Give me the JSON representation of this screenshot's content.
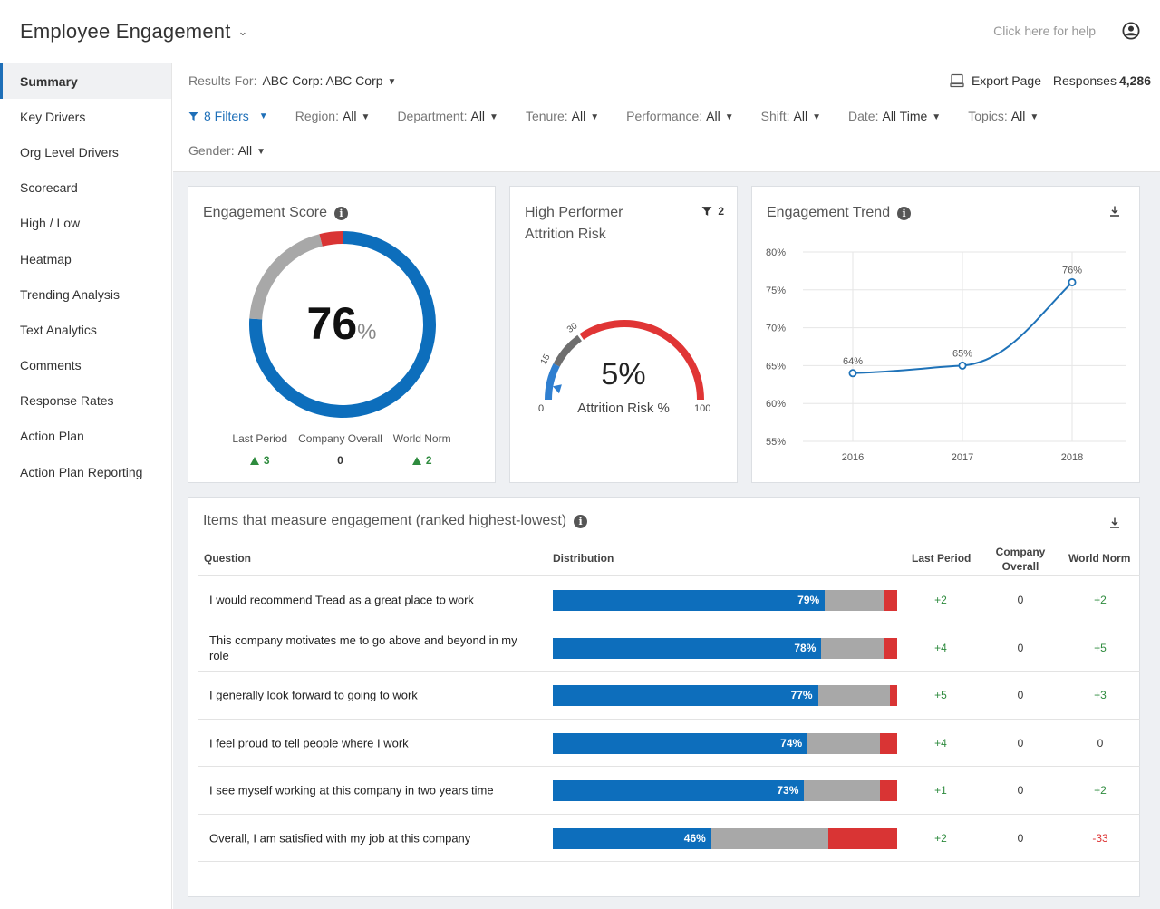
{
  "header": {
    "title": "Employee Engagement",
    "help": "Click here for help"
  },
  "sidebar": {
    "items": [
      {
        "label": "Summary",
        "active": true
      },
      {
        "label": "Key Drivers"
      },
      {
        "label": "Org Level Drivers"
      },
      {
        "label": "Scorecard"
      },
      {
        "label": "High / Low"
      },
      {
        "label": "Heatmap"
      },
      {
        "label": "Trending Analysis"
      },
      {
        "label": "Text Analytics"
      },
      {
        "label": "Comments"
      },
      {
        "label": "Response Rates"
      },
      {
        "label": "Action Plan"
      },
      {
        "label": "Action Plan Reporting"
      }
    ]
  },
  "filters": {
    "results_label": "Results For:",
    "results_value": "ABC Corp: ABC Corp",
    "export_label": "Export Page",
    "responses_label": "Responses",
    "responses_count": "4,286",
    "filter_count": "8 Filters",
    "items": [
      {
        "label": "Region:",
        "value": "All"
      },
      {
        "label": "Department:",
        "value": "All"
      },
      {
        "label": "Tenure:",
        "value": "All"
      },
      {
        "label": "Performance:",
        "value": "All"
      },
      {
        "label": "Shift:",
        "value": "All"
      },
      {
        "label": "Date:",
        "value": "All Time"
      },
      {
        "label": "Topics:",
        "value": "All"
      },
      {
        "label": "Gender:",
        "value": "All"
      }
    ]
  },
  "engagement_score": {
    "title": "Engagement Score",
    "value": "76",
    "unit": "%",
    "ring": {
      "positive": 76,
      "neutral": 20,
      "negative": 4
    },
    "stats": [
      {
        "label": "Last Period",
        "value": "3",
        "trend": "up"
      },
      {
        "label": "Company Overall",
        "value": "0",
        "trend": "none"
      },
      {
        "label": "World Norm",
        "value": "2",
        "trend": "up"
      }
    ]
  },
  "attrition": {
    "title_line1": "High Performer",
    "title_line2": "Attrition Risk",
    "filter_count": "2",
    "value": "5%",
    "caption": "Attrition Risk %",
    "gauge_min": "0",
    "gauge_max": "100",
    "mark_15": "15",
    "mark_30": "30",
    "gauge_value": 5
  },
  "chart_data": {
    "type": "line",
    "title": "Engagement Trend",
    "x": [
      "2016",
      "2017",
      "2018"
    ],
    "values": [
      64,
      65,
      76
    ],
    "point_labels": [
      "64%",
      "65%",
      "76%"
    ],
    "ylim": [
      55,
      80
    ],
    "yticks": [
      "55%",
      "60%",
      "65%",
      "70%",
      "75%",
      "80%"
    ],
    "ytick_values": [
      55,
      60,
      65,
      70,
      75,
      80
    ],
    "grid": true,
    "color": "#1e72b8"
  },
  "items_table": {
    "title": "Items that measure engagement (ranked highest-lowest)",
    "columns": {
      "question": "Question",
      "distribution": "Distribution",
      "last_period": "Last Period",
      "company_overall": "Company Overall",
      "world_norm": "World Norm"
    },
    "rows": [
      {
        "question": "I would recommend Tread as a great place to work",
        "pos": 79,
        "pos_label": "79%",
        "neu": 17,
        "neg": 4,
        "last": "+2",
        "company": "0",
        "world": "+2"
      },
      {
        "question": "This company motivates me to go above and beyond in my role",
        "pos": 78,
        "pos_label": "78%",
        "neu": 18,
        "neg": 4,
        "last": "+4",
        "company": "0",
        "world": "+5"
      },
      {
        "question": "I generally look forward to going to work",
        "pos": 77,
        "pos_label": "77%",
        "neu": 21,
        "neg": 2,
        "last": "+5",
        "company": "0",
        "world": "+3"
      },
      {
        "question": "I feel proud to tell people where I work",
        "pos": 74,
        "pos_label": "74%",
        "neu": 21,
        "neg": 5,
        "last": "+4",
        "company": "0",
        "world": "0"
      },
      {
        "question": "I see myself working at this company in two years time",
        "pos": 73,
        "pos_label": "73%",
        "neu": 22,
        "neg": 5,
        "last": "+1",
        "company": "0",
        "world": "+2"
      },
      {
        "question": "Overall, I am satisfied with my job at this company",
        "pos": 46,
        "pos_label": "46%",
        "neu": 34,
        "neg": 20,
        "last": "+2",
        "company": "0",
        "world": "-33"
      }
    ]
  },
  "colors": {
    "positive": "#0d6ebc",
    "neutral": "#a8a8a8",
    "negative": "#d93434",
    "accent": "#1e6fb8",
    "up": "#2e8b3e"
  }
}
